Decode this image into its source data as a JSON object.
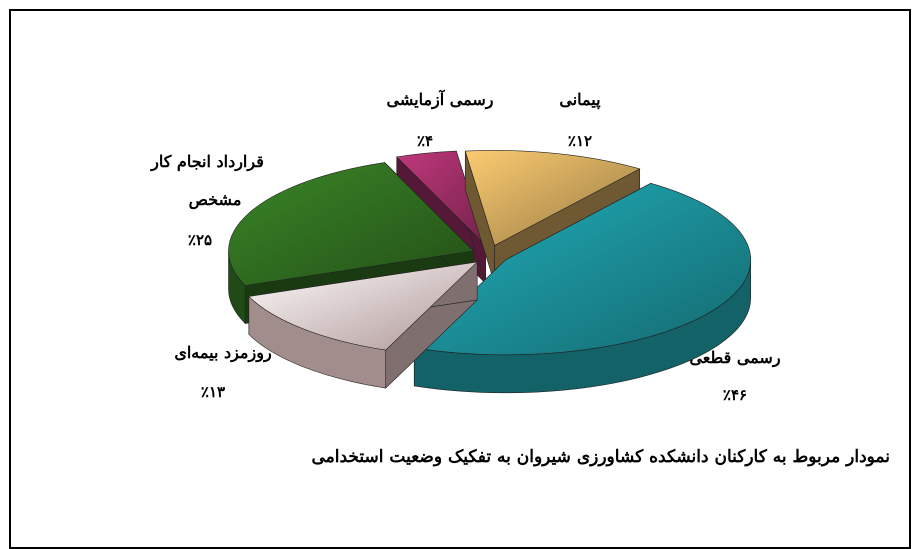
{
  "chart_data": {
    "type": "pie",
    "title": "نمودار مربوط به کارکنان دانشکده کشاورزی شیروان به تفکیک وضعیت استخدامی",
    "slices": [
      {
        "label": "پیمانی",
        "value_label": "٪۱۲",
        "value": 12,
        "color": "#c9a25a"
      },
      {
        "label": "رسمی قطعی",
        "value_label": "٪۴۶",
        "value": 46,
        "color": "#1a8c95"
      },
      {
        "label": "روزمزد بیمه‌ای",
        "value_label": "٪۱۳",
        "value": 13,
        "color": "#e8c9c9"
      },
      {
        "label_lines": [
          "قرارداد انجام کار",
          "مشخص"
        ],
        "value_label": "٪۲۵",
        "value": 25,
        "color": "#2f6b1f"
      },
      {
        "label": "رسمی آزمایشی",
        "value_label": "٪۴",
        "value": 4,
        "color": "#9a2d64"
      }
    ]
  }
}
